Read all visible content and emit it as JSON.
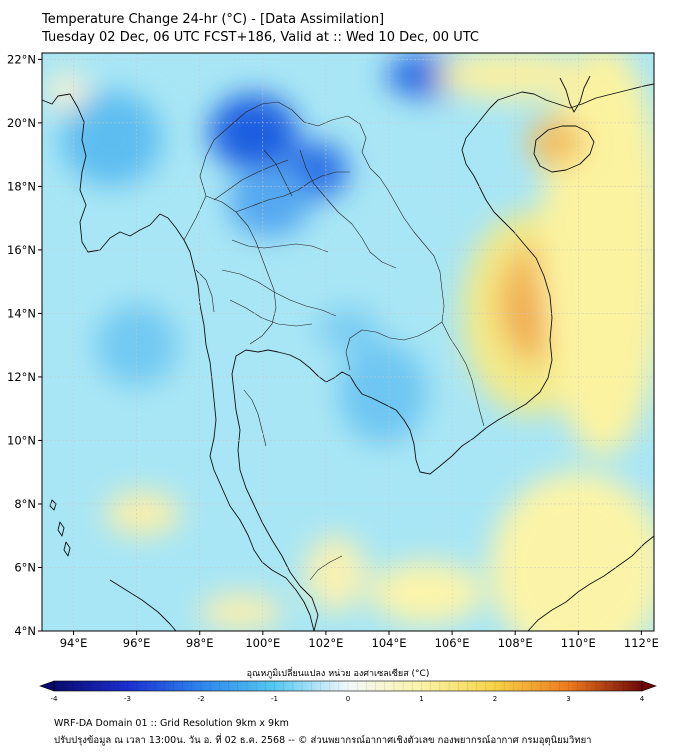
{
  "header": {
    "title_line1": "Temperature Change 24-hr (°C) - [Data Assimilation]",
    "title_line2": "Tuesday 02 Dec, 06 UTC FCST+186, Valid at :: Wed 10 Dec, 00 UTC"
  },
  "map": {
    "lat_labels": [
      "22°N",
      "20°N",
      "18°N",
      "16°N",
      "14°N",
      "12°N",
      "10°N",
      "8°N",
      "6°N",
      "4°N"
    ],
    "lon_labels": [
      "94°E",
      "96°E",
      "98°E",
      "100°E",
      "102°E",
      "104°E",
      "106°E",
      "108°E",
      "110°E",
      "112°E"
    ],
    "lat_range": [
      4,
      22.2
    ],
    "lon_range": [
      93,
      112.4
    ],
    "base_color": "#a8e6f5",
    "anomalies": [
      {
        "lon": 99.7,
        "lat": 19.7,
        "rx": 1.4,
        "ry": 1.2,
        "color": "#1f5fe0"
      },
      {
        "lon": 101.7,
        "lat": 18.5,
        "rx": 1.0,
        "ry": 0.9,
        "color": "#2a6fe6"
      },
      {
        "lon": 105.2,
        "lat": 21.5,
        "rx": 1.3,
        "ry": 0.7,
        "color": "#2a6be3"
      },
      {
        "lon": 100.2,
        "lat": 17.5,
        "rx": 1.3,
        "ry": 1.1,
        "color": "#55a8f0"
      },
      {
        "lon": 103.8,
        "lat": 11.5,
        "rx": 1.4,
        "ry": 1.6,
        "color": "#6ec6f2"
      },
      {
        "lon": 102.7,
        "lat": 13.5,
        "rx": 1.0,
        "ry": 0.7,
        "color": "#7ccdf3"
      },
      {
        "lon": 95.2,
        "lat": 19.5,
        "rx": 1.6,
        "ry": 1.5,
        "color": "#5dbdf0"
      },
      {
        "lon": 96.0,
        "lat": 13.0,
        "rx": 1.3,
        "ry": 1.3,
        "color": "#72c9f2"
      },
      {
        "lon": 108.5,
        "lat": 14.0,
        "rx": 2.2,
        "ry": 3.2,
        "color": "#f3ea88"
      },
      {
        "lon": 108.7,
        "lat": 14.3,
        "rx": 1.3,
        "ry": 1.9,
        "color": "#f2b95a"
      },
      {
        "lon": 108.8,
        "lat": 14.1,
        "rx": 0.6,
        "ry": 1.0,
        "color": "#ee9d44"
      },
      {
        "lon": 110.8,
        "lat": 16.0,
        "rx": 2.0,
        "ry": 6.5,
        "color": "#fbf3a0"
      },
      {
        "lon": 109.3,
        "lat": 19.4,
        "rx": 0.9,
        "ry": 0.8,
        "color": "#f3c062"
      },
      {
        "lon": 108.0,
        "lat": 21.5,
        "rx": 2.5,
        "ry": 0.8,
        "color": "#f8f0a4"
      },
      {
        "lon": 110.0,
        "lat": 6.0,
        "rx": 2.8,
        "ry": 3.0,
        "color": "#fbf4a8"
      },
      {
        "lon": 105.2,
        "lat": 5.2,
        "rx": 1.8,
        "ry": 1.0,
        "color": "#fbf4ac"
      },
      {
        "lon": 102.3,
        "lat": 5.8,
        "rx": 1.0,
        "ry": 1.2,
        "color": "#f8f1b2"
      },
      {
        "lon": 96.2,
        "lat": 7.7,
        "rx": 1.2,
        "ry": 0.7,
        "color": "#f9efaa"
      },
      {
        "lon": 99.3,
        "lat": 4.6,
        "rx": 1.3,
        "ry": 0.6,
        "color": "#f9efb0"
      },
      {
        "lon": 93.8,
        "lat": 21.0,
        "rx": 0.7,
        "ry": 0.6,
        "color": "#f5f1d2"
      }
    ]
  },
  "colorbar": {
    "label": "อุณหภูมิเปลี่ยนแปลง หน่วย องศาเซลเซียส (°C)",
    "min": -4,
    "max": 4,
    "ticks": [
      "-4",
      "-3",
      "-2",
      "-1",
      "0",
      "1",
      "2",
      "3",
      "4"
    ],
    "stops": [
      {
        "v": -4.0,
        "c": "#0a0a6e"
      },
      {
        "v": -3.0,
        "c": "#1b2fd0"
      },
      {
        "v": -2.0,
        "c": "#2f84ee"
      },
      {
        "v": -1.0,
        "c": "#55c8f0"
      },
      {
        "v": 0.0,
        "c": "#f2f8fb"
      },
      {
        "v": 1.0,
        "c": "#faf3a6"
      },
      {
        "v": 2.0,
        "c": "#f6d347"
      },
      {
        "v": 3.0,
        "c": "#ee7a1e"
      },
      {
        "v": 4.0,
        "c": "#6e0808"
      }
    ]
  },
  "footer": {
    "line1": "WRF-DA Domain 01 :: Grid Resolution 9km x 9km",
    "line2": "ปรับปรุงข้อมูล ณ เวลา 13:00น. วัน อ. ที่ 02 ธ.ค. 2568 -- © ส่วนพยากรณ์อากาศเชิงตัวเลข กองพยากรณ์อากาศ กรมอุตุนิยมวิทยา"
  }
}
